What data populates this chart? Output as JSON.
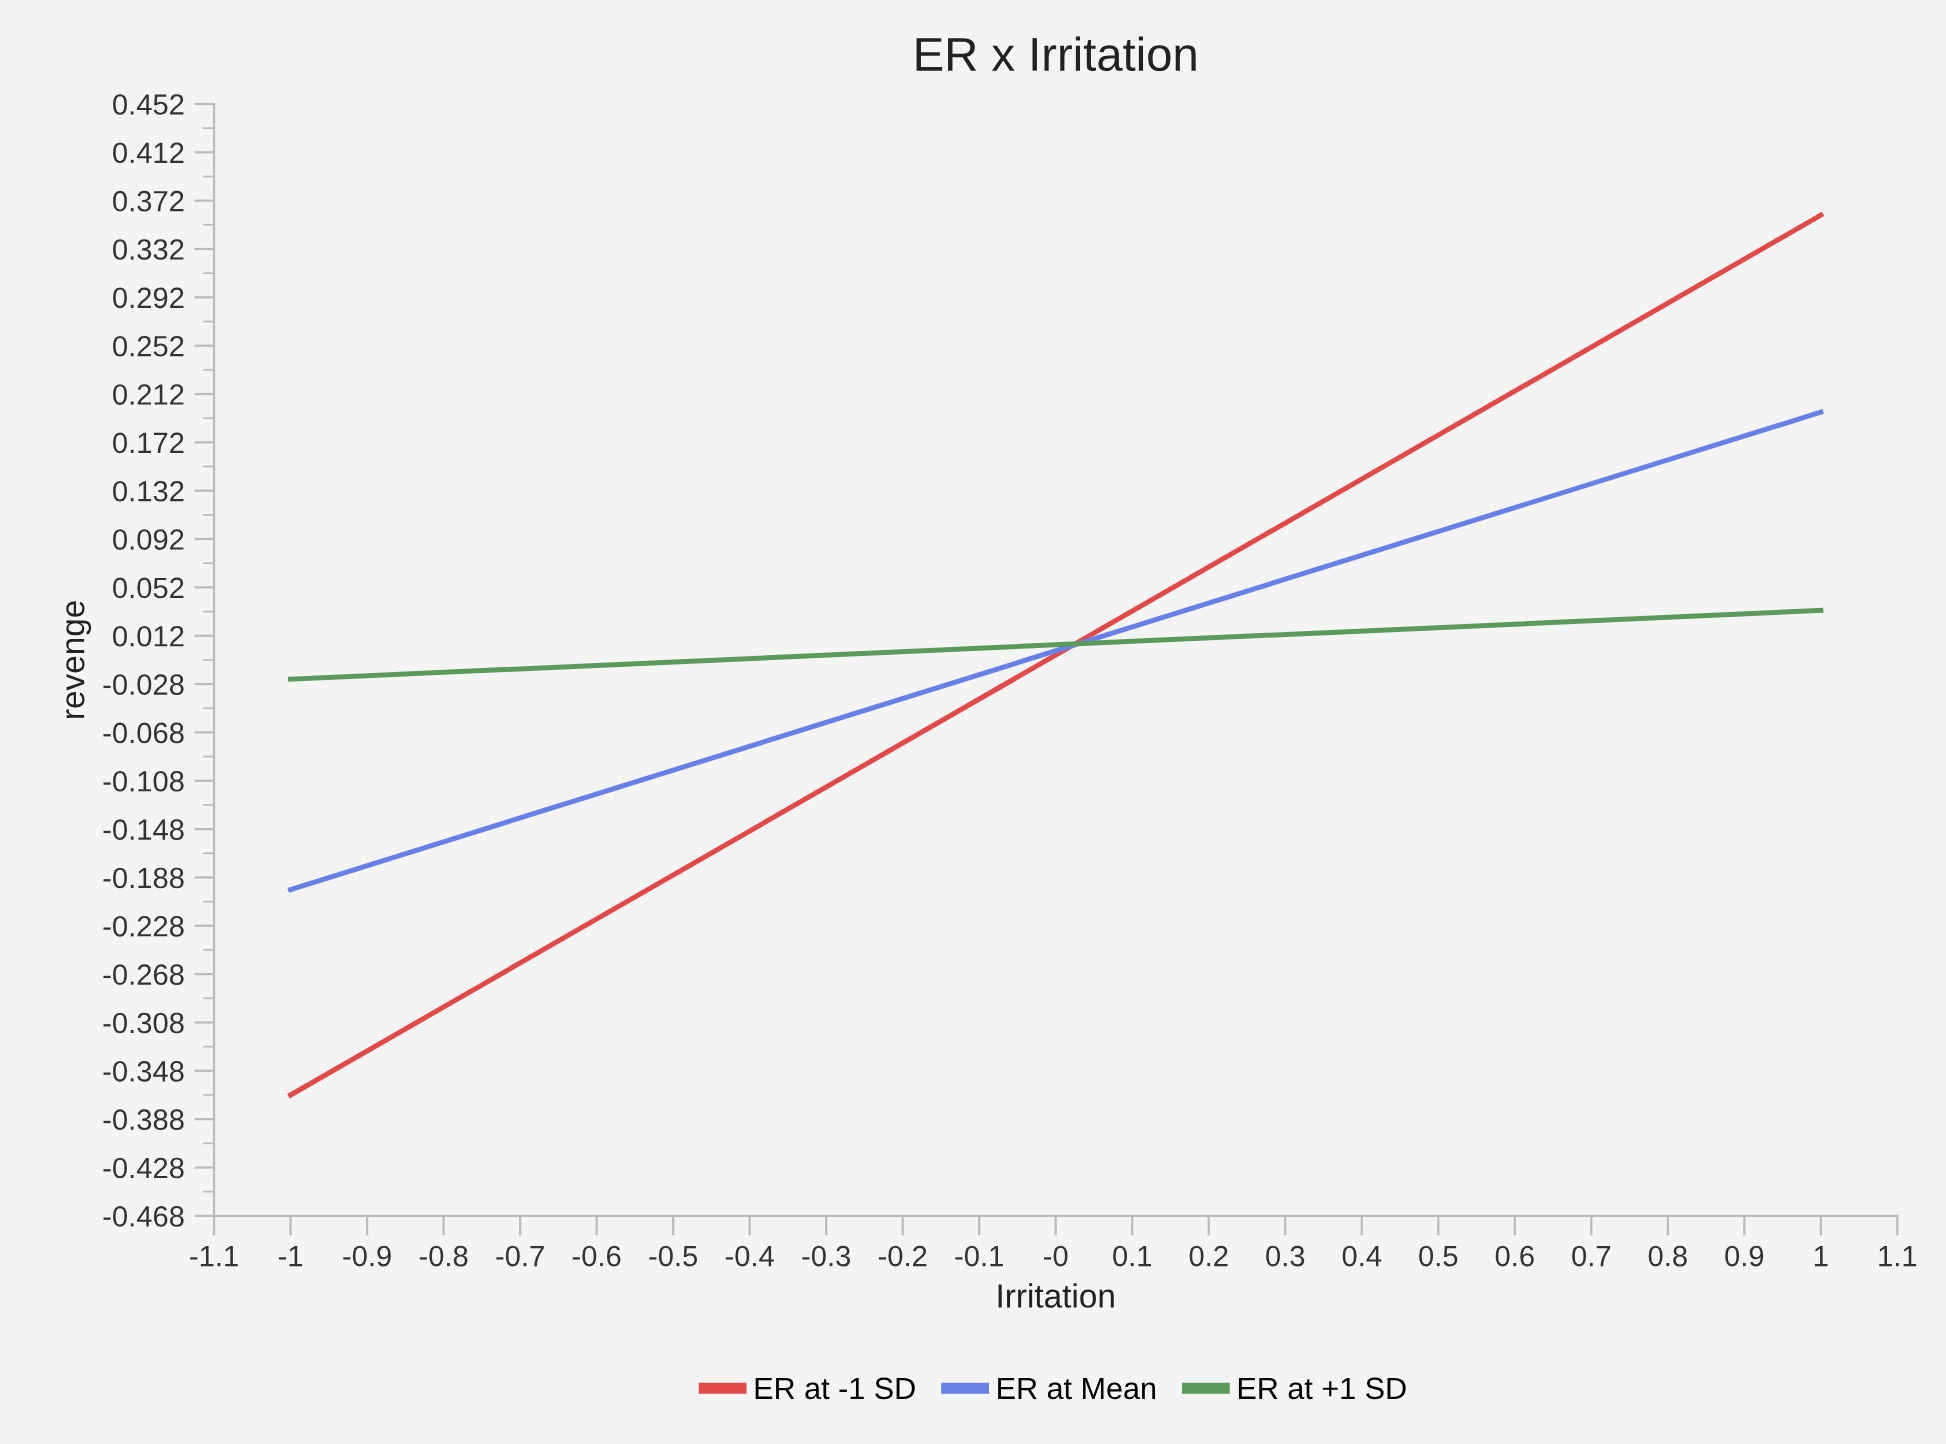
{
  "chart_data": {
    "type": "line",
    "title": "ER x Irritation",
    "xlabel": "Irritation",
    "ylabel": "revenge",
    "x": [
      -1,
      1
    ],
    "series": [
      {
        "name": "ER at -1 SD",
        "color": "#e24a4a",
        "values": [
          -0.368,
          0.36
        ]
      },
      {
        "name": "ER at Mean",
        "color": "#6680e8",
        "values": [
          -0.198,
          0.197
        ]
      },
      {
        "name": "ER at +1 SD",
        "color": "#5a9a5a",
        "values": [
          -0.024,
          0.033
        ]
      }
    ],
    "xlim": [
      -1.1,
      1.1
    ],
    "xticks": [
      -1.1,
      -1,
      -0.9,
      -0.8,
      -0.7,
      -0.6,
      -0.5,
      -0.4,
      -0.3,
      -0.2,
      -0.1,
      {
        "value": 0,
        "label": "-0"
      },
      0.1,
      0.2,
      0.3,
      0.4,
      0.5,
      0.6,
      0.7,
      0.8,
      0.9,
      1,
      1.1
    ],
    "ylim": [
      -0.468,
      0.452
    ],
    "yticks": [
      -0.468,
      -0.428,
      -0.388,
      -0.348,
      -0.308,
      -0.268,
      -0.228,
      -0.188,
      -0.148,
      -0.108,
      -0.068,
      -0.028,
      0.012,
      0.052,
      0.092,
      0.132,
      0.172,
      0.212,
      0.252,
      0.292,
      0.332,
      0.372,
      0.412,
      0.452
    ],
    "legend": "bottom",
    "grid": false,
    "marker": "none",
    "line_style": "solid"
  }
}
